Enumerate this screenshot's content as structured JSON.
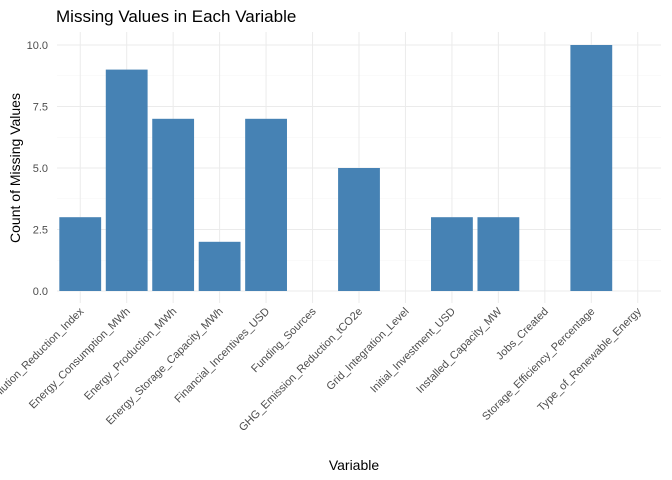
{
  "chart_data": {
    "type": "bar",
    "title": "Missing Values in Each Variable",
    "xlabel": "Variable",
    "ylabel": "Count of Missing Values",
    "categories": [
      "Air_Pollution_Reduction_Index",
      "Energy_Consumption_MWh",
      "Energy_Production_MWh",
      "Energy_Storage_Capacity_MWh",
      "Financial_Incentives_USD",
      "Funding_Sources",
      "GHG_Emission_Reduction_tCO2e",
      "Grid_Integration_Level",
      "Initial_Investment_USD",
      "Installed_Capacity_MW",
      "Jobs_Created",
      "Storage_Efficiency_Percentage",
      "Type_of_Renewable_Energy"
    ],
    "values": [
      3,
      9,
      7,
      2,
      7,
      0,
      5,
      0,
      3,
      3,
      0,
      10,
      0
    ],
    "yticks": [
      0,
      2.5,
      5,
      7.5,
      10
    ],
    "ytick_labels": [
      "0.0",
      "2.5",
      "5.0",
      "7.5",
      "10.0"
    ],
    "ylim": [
      0,
      10.5
    ],
    "bar_color": "#4682B4",
    "grid": true,
    "theme": "minimal"
  }
}
